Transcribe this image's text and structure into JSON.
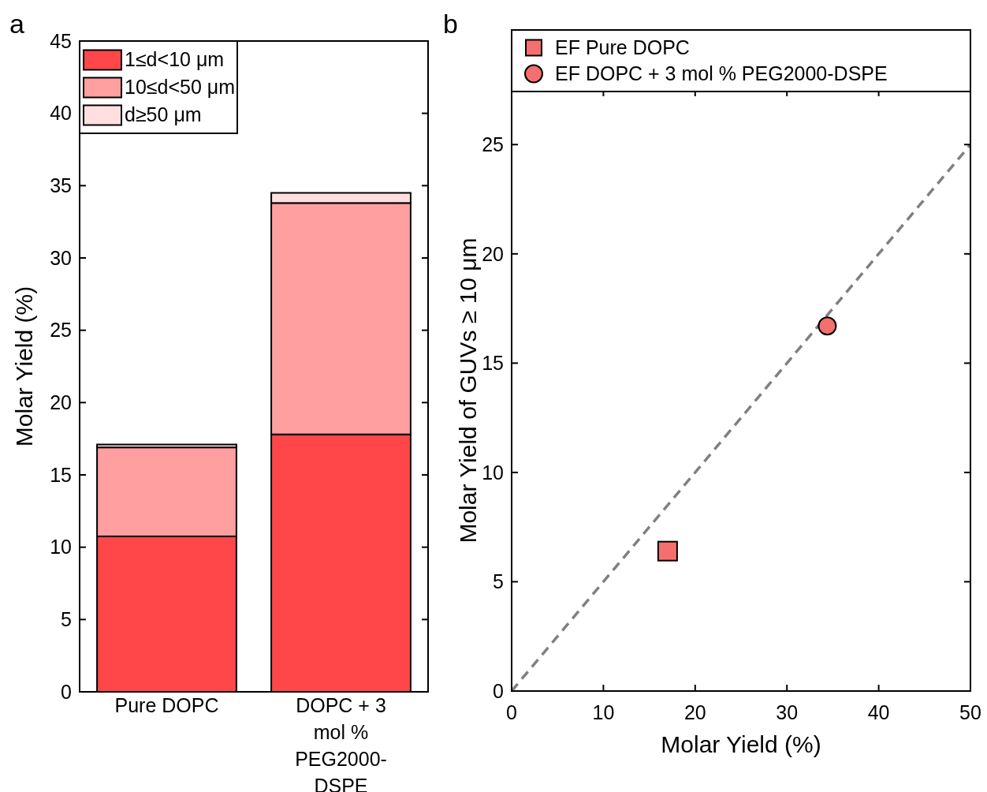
{
  "chart_data": [
    {
      "type": "bar",
      "title": "a",
      "ylabel": "Molar Yield (%)",
      "categories": [
        "Pure DOPC",
        "DOPC + 3 mol % PEG2000-DSPE"
      ],
      "stacked": true,
      "series": [
        {
          "name": "1≤d<10 μm",
          "color": "#ff474a",
          "values": [
            10.75,
            17.8
          ]
        },
        {
          "name": "10≤d<50 μm",
          "color": "#ff9fa0",
          "values": [
            6.15,
            16.0
          ]
        },
        {
          "name": "d≥50 μm",
          "color": "#ffdfe0",
          "values": [
            0.2,
            0.7
          ]
        }
      ],
      "ylim": [
        0,
        45
      ],
      "yticks": [
        0,
        5,
        10,
        15,
        20,
        25,
        30,
        35,
        40,
        45
      ],
      "legend": "top left",
      "grid": false
    },
    {
      "type": "scatter",
      "title": "b",
      "xlabel": "Molar Yield (%)",
      "ylabel": "Molar Yield of GUVs ≥ 10 μm",
      "series": [
        {
          "type": "line",
          "color": "#808080",
          "line_style": "dashed",
          "marker": "none",
          "x": [
            0,
            50
          ],
          "values": [
            0,
            25
          ]
        },
        {
          "name": "EF Pure DOPC",
          "color": "#f4706f",
          "marker": "square",
          "x": [
            17.0
          ],
          "values": [
            6.4
          ]
        },
        {
          "name": "EF DOPC + 3 mol % PEG2000-DSPE",
          "color": "#f4706f",
          "marker": "circle",
          "x": [
            34.4
          ],
          "values": [
            16.7
          ]
        }
      ],
      "xlim": [
        0,
        50
      ],
      "xticks": [
        0,
        10,
        20,
        30,
        40,
        50
      ],
      "ylim": [
        0,
        27.5
      ],
      "yticks": [
        0,
        5,
        10,
        15,
        20,
        25
      ],
      "legend": "top",
      "grid": false
    }
  ]
}
